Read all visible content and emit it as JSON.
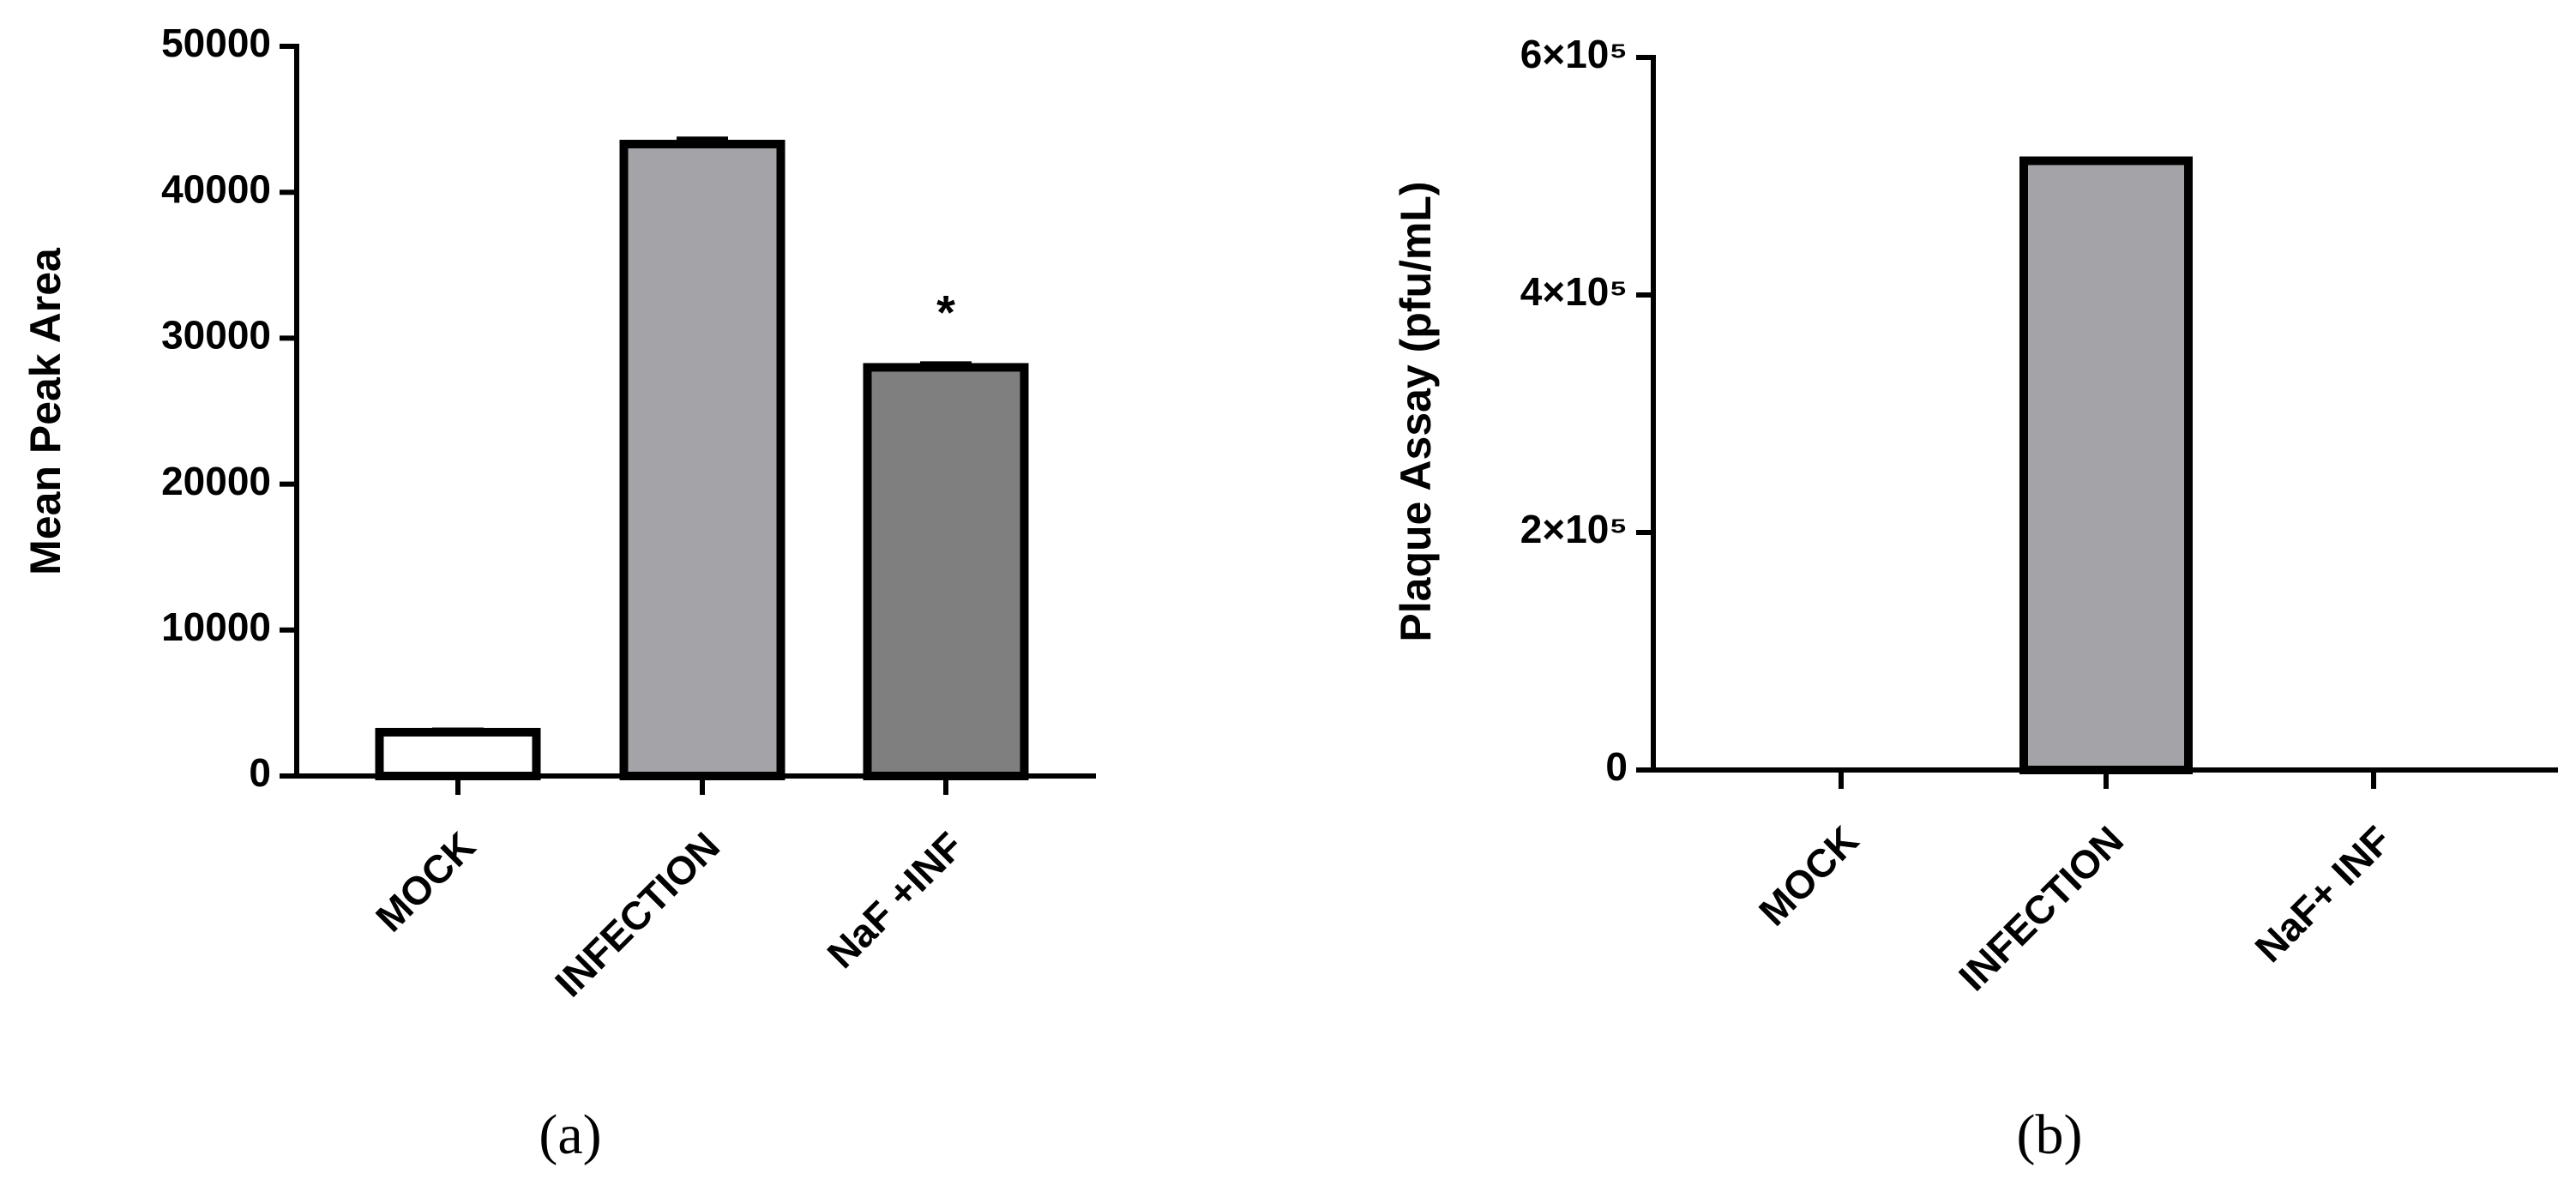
{
  "chart_data": [
    {
      "type": "bar",
      "panel_label": "(a)",
      "y_label": "Mean Peak  Area",
      "categories": [
        "MOCK",
        "INFECTION",
        "NaF +INF"
      ],
      "values": [
        3000,
        43300,
        28000
      ],
      "errors": [
        200,
        400,
        300
      ],
      "colors": [
        "#ffffff",
        "#a4a3a8",
        "#7f7f7f"
      ],
      "ylim": [
        0,
        50000
      ],
      "yticks": [
        0,
        10000,
        20000,
        30000,
        40000,
        50000
      ],
      "annotations": [
        {
          "text": "*",
          "category": "NaF +INF"
        }
      ]
    },
    {
      "type": "bar",
      "panel_label": "(b)",
      "y_label": "Plaque Assay (pfu/mL)",
      "categories": [
        "MOCK",
        "INFECTION",
        "NaF+ INF"
      ],
      "values": [
        0,
        513000,
        0
      ],
      "colors": [
        "#ffffff",
        "#a4a3a8",
        "#7f7f7f"
      ],
      "ylim": [
        0,
        600000
      ],
      "yticks": [
        0,
        {
          "value": 200000,
          "label": "2×10⁵"
        },
        {
          "value": 400000,
          "label": "4×10⁵"
        },
        {
          "value": 600000,
          "label": "6×10⁵"
        }
      ]
    }
  ]
}
